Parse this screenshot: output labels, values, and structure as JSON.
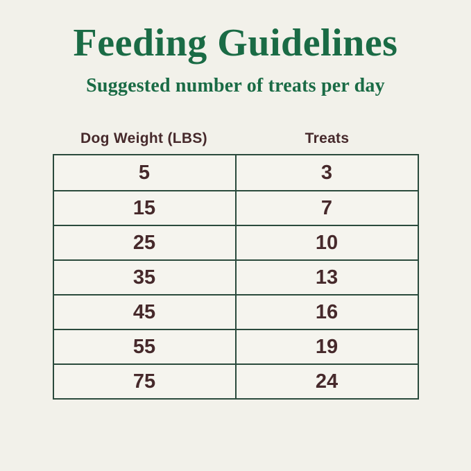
{
  "page": {
    "title": "Feeding Guidelines",
    "subtitle": "Suggested number of treats per day"
  },
  "colors": {
    "background": "#f2f1ea",
    "title_green": "#1a6b45",
    "table_border_green": "#2a4a3c",
    "text_brown": "#46292b"
  },
  "table": {
    "columns": [
      "Dog Weight (LBS)",
      "Treats"
    ],
    "rows": [
      {
        "weight": "5",
        "treats": "3"
      },
      {
        "weight": "15",
        "treats": "7"
      },
      {
        "weight": "25",
        "treats": "10"
      },
      {
        "weight": "35",
        "treats": "13"
      },
      {
        "weight": "45",
        "treats": "16"
      },
      {
        "weight": "55",
        "treats": "19"
      },
      {
        "weight": "75",
        "treats": "24"
      }
    ]
  },
  "chart_data": {
    "type": "table",
    "title": "Feeding Guidelines",
    "subtitle": "Suggested number of treats per day",
    "columns": [
      "Dog Weight (LBS)",
      "Treats"
    ],
    "rows": [
      [
        5,
        3
      ],
      [
        15,
        7
      ],
      [
        25,
        10
      ],
      [
        35,
        13
      ],
      [
        45,
        16
      ],
      [
        55,
        19
      ],
      [
        75,
        24
      ]
    ]
  }
}
